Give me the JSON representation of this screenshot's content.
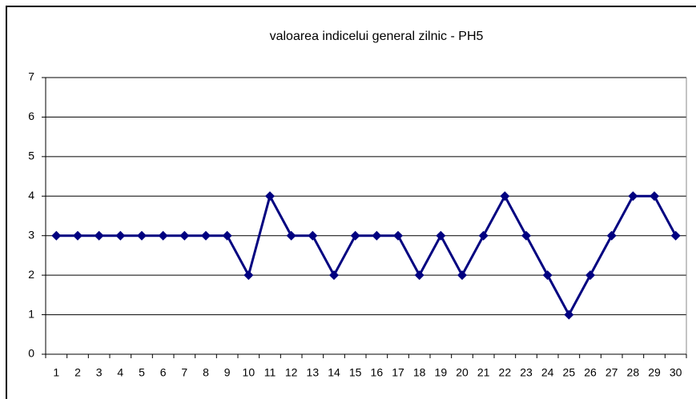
{
  "chart_data": {
    "type": "line",
    "title": "valoarea indicelui general zilnic - PH5",
    "categories": [
      1,
      2,
      3,
      4,
      5,
      6,
      7,
      8,
      9,
      10,
      11,
      12,
      13,
      14,
      15,
      16,
      17,
      18,
      19,
      20,
      21,
      22,
      23,
      24,
      25,
      26,
      27,
      28,
      29,
      30
    ],
    "series": [
      {
        "name": "PH5",
        "color": "#000080",
        "values": [
          3,
          3,
          3,
          3,
          3,
          3,
          3,
          3,
          3,
          2,
          4,
          3,
          3,
          2,
          3,
          3,
          3,
          2,
          3,
          2,
          3,
          4,
          3,
          2,
          1,
          2,
          3,
          4,
          4,
          3
        ]
      }
    ],
    "ylim": [
      0,
      7
    ],
    "yticks": [
      0,
      1,
      2,
      3,
      4,
      5,
      6,
      7
    ],
    "grid": true,
    "legend": false
  }
}
